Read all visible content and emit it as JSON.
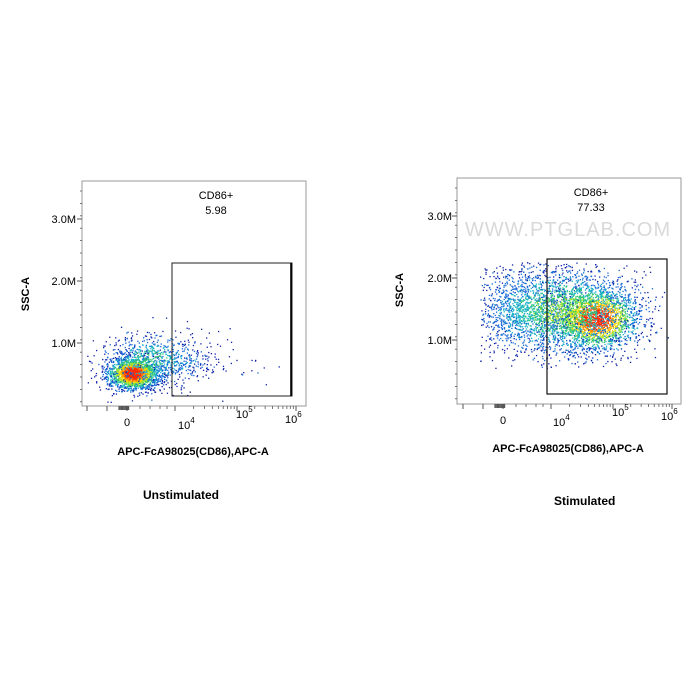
{
  "chart_data": [
    {
      "type": "scatter",
      "subtype": "flow-cytometry-density-dot-plot",
      "caption": "Unstimulated",
      "xlabel": "APC-FcA98025(CD86),APC-A",
      "ylabel": "SSC-A",
      "x_scale": "biexponential",
      "x_ticks": [
        {
          "label": "0",
          "base": "0",
          "exp": ""
        },
        {
          "label": "10^4",
          "base": "10",
          "exp": "4"
        },
        {
          "label": "10^5",
          "base": "10",
          "exp": "5"
        },
        {
          "label": "10^6",
          "base": "10",
          "exp": "6"
        }
      ],
      "y_ticks": [
        "1.0M",
        "2.0M",
        "3.0M"
      ],
      "ylim": [
        0,
        3600000
      ],
      "gate": {
        "name": "CD86+",
        "value": "5.98",
        "x_range": [
          "7000",
          "900000"
        ],
        "y_range": [
          0,
          2300000
        ]
      },
      "population": {
        "center_x": "0",
        "center_y": 500000,
        "description": "single dense cluster near x=0, y≈0.5M"
      },
      "watermark": ""
    },
    {
      "type": "scatter",
      "subtype": "flow-cytometry-density-dot-plot",
      "caption": "Stimulated",
      "xlabel": "APC-FcA98025(CD86),APC-A",
      "ylabel": "SSC-A",
      "x_scale": "biexponential",
      "x_ticks": [
        {
          "label": "0",
          "base": "0",
          "exp": ""
        },
        {
          "label": "10^4",
          "base": "10",
          "exp": "4"
        },
        {
          "label": "10^5",
          "base": "10",
          "exp": "5"
        },
        {
          "label": "10^6",
          "base": "10",
          "exp": "6"
        }
      ],
      "y_ticks": [
        "1.0M",
        "2.0M",
        "3.0M"
      ],
      "ylim": [
        0,
        3600000
      ],
      "gate": {
        "name": "CD86+",
        "value": "77.33",
        "x_range": [
          "7000",
          "900000"
        ],
        "y_range": [
          0,
          2200000
        ]
      },
      "population": {
        "center_x": "60000",
        "center_y": 1250000,
        "description": "broad population shifted into gate, y≈0.5M–2.2M"
      },
      "watermark": "WWW.PTGLAB.COM"
    }
  ]
}
